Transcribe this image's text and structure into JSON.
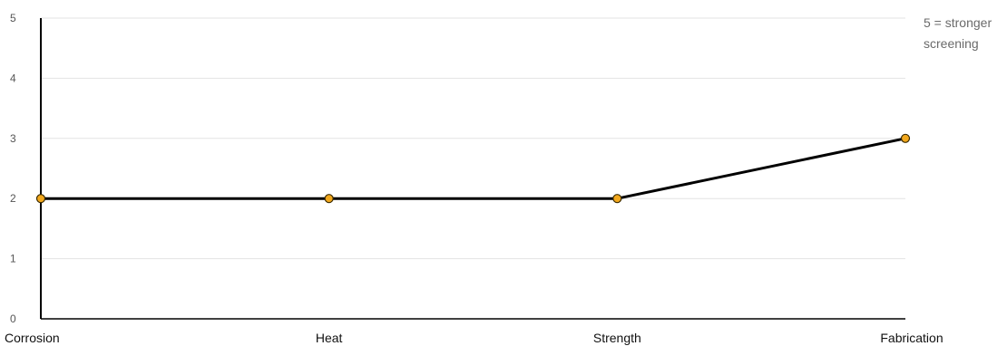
{
  "chart_data": {
    "type": "line",
    "categories": [
      "Corrosion",
      "Heat",
      "Strength",
      "Fabrication"
    ],
    "series": [
      {
        "values": [
          2,
          2,
          2,
          3
        ]
      }
    ],
    "ylim": [
      0,
      5
    ],
    "yticks": [
      "0",
      "1",
      "2",
      "3",
      "4",
      "5"
    ],
    "annotation": [
      "5 = stronger",
      "screening"
    ],
    "grid": true,
    "legend": "none",
    "colors": {
      "line": "#000000",
      "marker_fill": "#f2a81d",
      "marker_stroke": "#3a2a00",
      "grid": "#e3e3e3",
      "axis": "#000000"
    }
  }
}
